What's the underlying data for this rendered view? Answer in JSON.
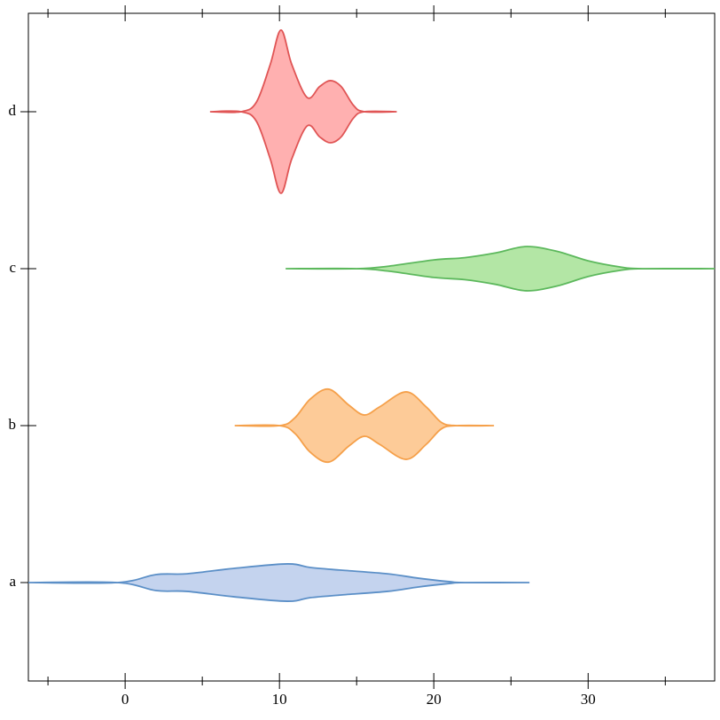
{
  "chart_data": {
    "type": "violin",
    "orientation": "horizontal",
    "categories": [
      "a",
      "b",
      "c",
      "d"
    ],
    "xlim": [
      -6.27,
      38.2
    ],
    "xticks": [
      0,
      10,
      20,
      30
    ],
    "xminor_ticks": [
      -5,
      5,
      15,
      25,
      35
    ],
    "series": [
      {
        "color": "#5b8fc7",
        "fill": "#c4d3ee",
        "x": [
          -6.27,
          -0.5,
          2,
          4,
          7,
          10.5,
          12,
          14,
          17,
          19,
          21,
          22,
          26.2
        ],
        "density": [
          0,
          0,
          0.051,
          0.056,
          0.09,
          0.119,
          0.096,
          0.079,
          0.056,
          0.028,
          0.006,
          0,
          0
        ]
      },
      {
        "color": "#f5a04a",
        "fill": "#fdcb98",
        "x": [
          7.1,
          10,
          11,
          12,
          13.2,
          14.5,
          15.5,
          16.5,
          18.2,
          19.5,
          20.5,
          21.5,
          23.9
        ],
        "density": [
          0,
          0,
          0.05,
          0.17,
          0.232,
          0.13,
          0.068,
          0.12,
          0.215,
          0.12,
          0.02,
          0,
          0
        ]
      },
      {
        "color": "#5cb85c",
        "fill": "#b3e6a5",
        "x": [
          10.4,
          15,
          17,
          20,
          22,
          24,
          26,
          28,
          30,
          32,
          33.5,
          38.2
        ],
        "density": [
          0,
          0,
          0.015,
          0.056,
          0.07,
          0.1,
          0.141,
          0.11,
          0.05,
          0.012,
          0,
          0
        ]
      },
      {
        "color": "#e05555",
        "fill": "#ffb0b0",
        "x": [
          5.5,
          7.5,
          8.5,
          9.4,
          10.1,
          10.8,
          11.8,
          12.6,
          13.3,
          14,
          14.8,
          15.5,
          17.6
        ],
        "density": [
          0,
          0,
          0.06,
          0.3,
          0.52,
          0.3,
          0.09,
          0.16,
          0.198,
          0.16,
          0.04,
          0,
          0
        ]
      }
    ]
  }
}
